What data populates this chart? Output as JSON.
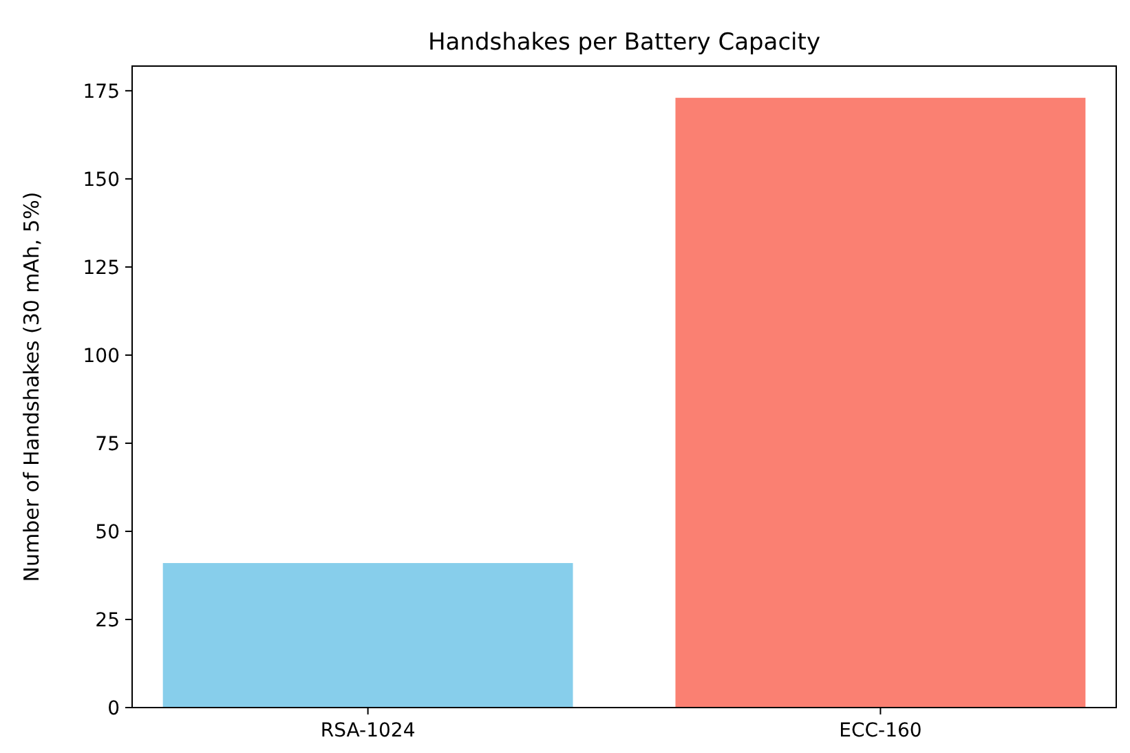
{
  "chart_data": {
    "type": "bar",
    "title": "Handshakes per Battery Capacity",
    "ylabel": "Number of Handshakes (30 mAh, 5%)",
    "categories": [
      "RSA-1024",
      "ECC-160"
    ],
    "values": [
      41,
      173
    ],
    "colors": [
      "#87ceeb",
      "#fa8072"
    ],
    "ylim": [
      0,
      182
    ],
    "yticks": [
      0,
      25,
      50,
      75,
      100,
      125,
      150,
      175
    ],
    "grid": false
  }
}
